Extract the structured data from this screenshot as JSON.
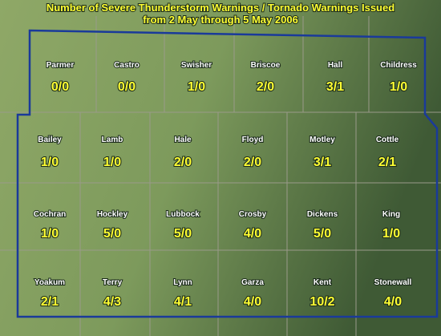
{
  "title": [
    "Number of Severe Thunderstorm Warnings / Tornado Warnings Issued",
    "from 2 May through 5 May 2006"
  ],
  "counties": [
    {
      "name": "Parmer",
      "count": "0/0"
    },
    {
      "name": "Castro",
      "count": "0/0"
    },
    {
      "name": "Swisher",
      "count": "1/0"
    },
    {
      "name": "Briscoe",
      "count": "2/0"
    },
    {
      "name": "Hall",
      "count": "3/1"
    },
    {
      "name": "Childress",
      "count": "1/0"
    },
    {
      "name": "Bailey",
      "count": "1/0"
    },
    {
      "name": "Lamb",
      "count": "1/0"
    },
    {
      "name": "Hale",
      "count": "2/0"
    },
    {
      "name": "Floyd",
      "count": "2/0"
    },
    {
      "name": "Motley",
      "count": "3/1"
    },
    {
      "name": "Cottle",
      "count": "2/1"
    },
    {
      "name": "Cochran",
      "count": "1/0"
    },
    {
      "name": "Hockley",
      "count": "5/0"
    },
    {
      "name": "Lubbock",
      "count": "5/0"
    },
    {
      "name": "Crosby",
      "count": "4/0"
    },
    {
      "name": "Dickens",
      "count": "5/0"
    },
    {
      "name": "King",
      "count": "1/0"
    },
    {
      "name": "Yoakum",
      "count": "2/1"
    },
    {
      "name": "Terry",
      "count": "4/3"
    },
    {
      "name": "Lynn",
      "count": "4/1"
    },
    {
      "name": "Garza",
      "count": "4/0"
    },
    {
      "name": "Kent",
      "count": "10/2"
    },
    {
      "name": "Stonewall",
      "count": "4/0"
    }
  ]
}
